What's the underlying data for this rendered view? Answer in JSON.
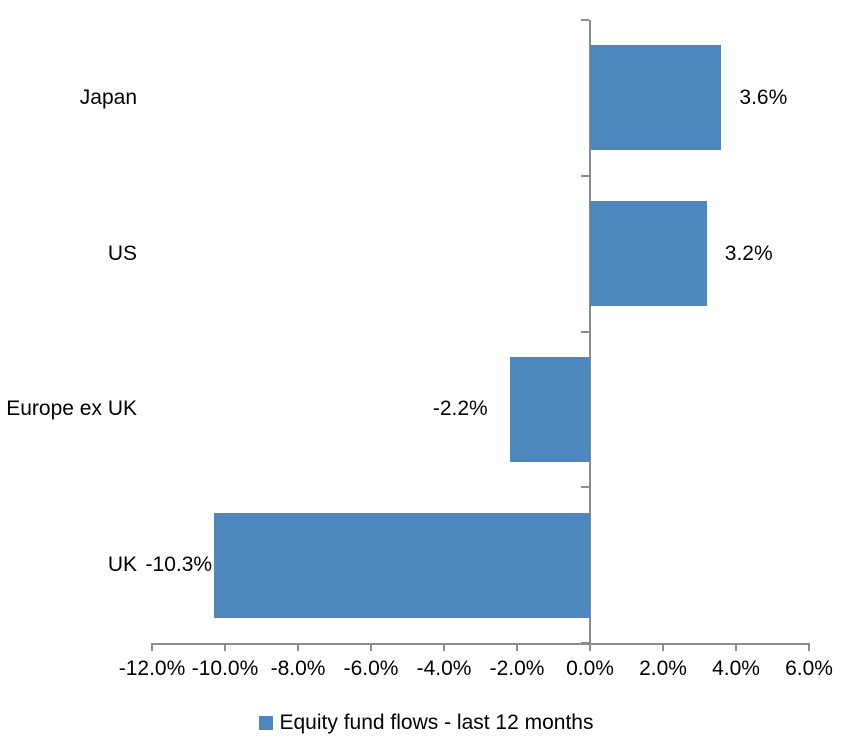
{
  "chart_data": {
    "type": "bar",
    "orientation": "horizontal",
    "categories": [
      "Japan",
      "US",
      "Europe ex UK",
      "UK"
    ],
    "values": [
      3.6,
      3.2,
      -2.2,
      -10.3
    ],
    "data_labels": [
      "3.6%",
      "3.2%",
      "-2.2%",
      "-10.3%"
    ],
    "series_name": "Equity fund flows - last 12 months",
    "xlim": [
      -12,
      6
    ],
    "x_tick_interval": 2,
    "x_tick_labels": [
      "-12.0%",
      "-10.0%",
      "-8.0%",
      "-6.0%",
      "-4.0%",
      "-2.0%",
      "0.0%",
      "2.0%",
      "4.0%",
      "6.0%"
    ],
    "grid": false,
    "legend_position": "bottom",
    "colors": {
      "bar": "#4E86BE",
      "axis": "#8C8C8C",
      "text": "#000000",
      "background": "#FFFFFF"
    }
  }
}
